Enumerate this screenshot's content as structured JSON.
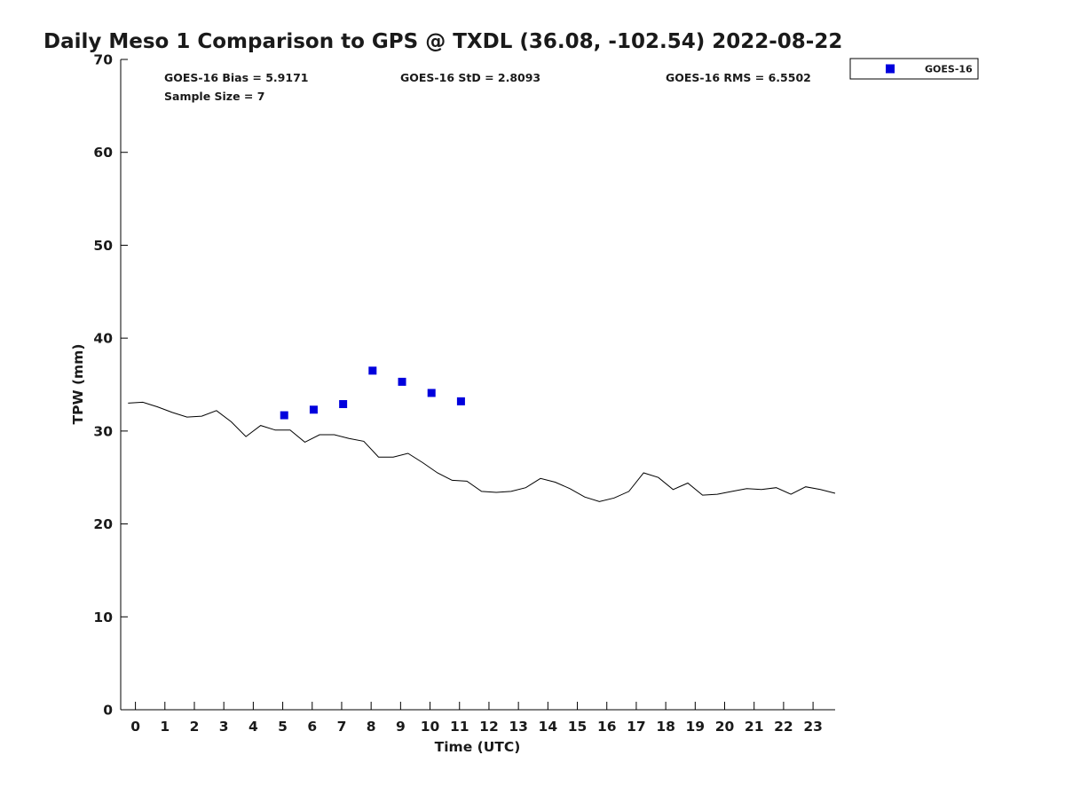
{
  "chart_data": {
    "type": "line",
    "title": "Daily Meso 1 Comparison to GPS @ TXDL (36.08, -102.54) 2022-08-22",
    "xlabel": "Time (UTC)",
    "ylabel": "TPW (mm)",
    "xlim": [
      -0.5,
      23.75
    ],
    "ylim": [
      0,
      70
    ],
    "x_ticks": [
      0,
      1,
      2,
      3,
      4,
      5,
      6,
      7,
      8,
      9,
      10,
      11,
      12,
      13,
      14,
      15,
      16,
      17,
      18,
      19,
      20,
      21,
      22,
      23
    ],
    "y_ticks": [
      0,
      10,
      20,
      30,
      40,
      50,
      60,
      70
    ],
    "grid": false,
    "legend_placement": "top-right-outside",
    "stats": {
      "bias": "GOES-16 Bias = 5.9171",
      "std": "GOES-16 StD = 2.8093",
      "rms": "GOES-16 RMS = 6.5502",
      "sample_size": "Sample Size = 7"
    },
    "series": [
      {
        "kind": "line",
        "color": "#000000",
        "x": [
          -0.25,
          0.25,
          0.75,
          1.25,
          1.75,
          2.25,
          2.75,
          3.25,
          3.75,
          4.25,
          4.75,
          5.25,
          5.75,
          6.25,
          6.75,
          7.25,
          7.75,
          8.25,
          8.75,
          9.25,
          9.75,
          10.25,
          10.75,
          11.25,
          11.75,
          12.25,
          12.75,
          13.25,
          13.75,
          14.25,
          14.75,
          15.25,
          15.75,
          16.25,
          16.75,
          17.25,
          17.75,
          18.25,
          18.75,
          19.25,
          19.75,
          20.25,
          20.75,
          21.25,
          21.75,
          22.25,
          22.75,
          23.25,
          23.75
        ],
        "values": [
          33.0,
          33.1,
          32.6,
          32.0,
          31.5,
          31.6,
          32.2,
          31.0,
          29.4,
          30.6,
          30.1,
          30.1,
          28.8,
          29.6,
          29.6,
          29.2,
          28.9,
          27.2,
          27.2,
          27.6,
          26.6,
          25.5,
          24.7,
          24.6,
          23.5,
          23.4,
          23.5,
          23.9,
          24.9,
          24.5,
          23.8,
          22.9,
          22.4,
          22.8,
          23.5,
          25.5,
          25.0,
          23.7,
          24.4,
          23.1,
          23.2,
          23.5,
          23.8,
          23.7,
          23.9,
          23.2,
          24.0,
          23.7,
          23.3
        ]
      },
      {
        "name": "GOES-16",
        "kind": "scatter",
        "marker": "square",
        "color": "#0000dd",
        "x": [
          5.05,
          6.05,
          7.05,
          8.05,
          9.05,
          10.05,
          11.05
        ],
        "values": [
          31.7,
          32.3,
          32.9,
          36.5,
          35.3,
          34.1,
          33.2
        ]
      }
    ]
  }
}
